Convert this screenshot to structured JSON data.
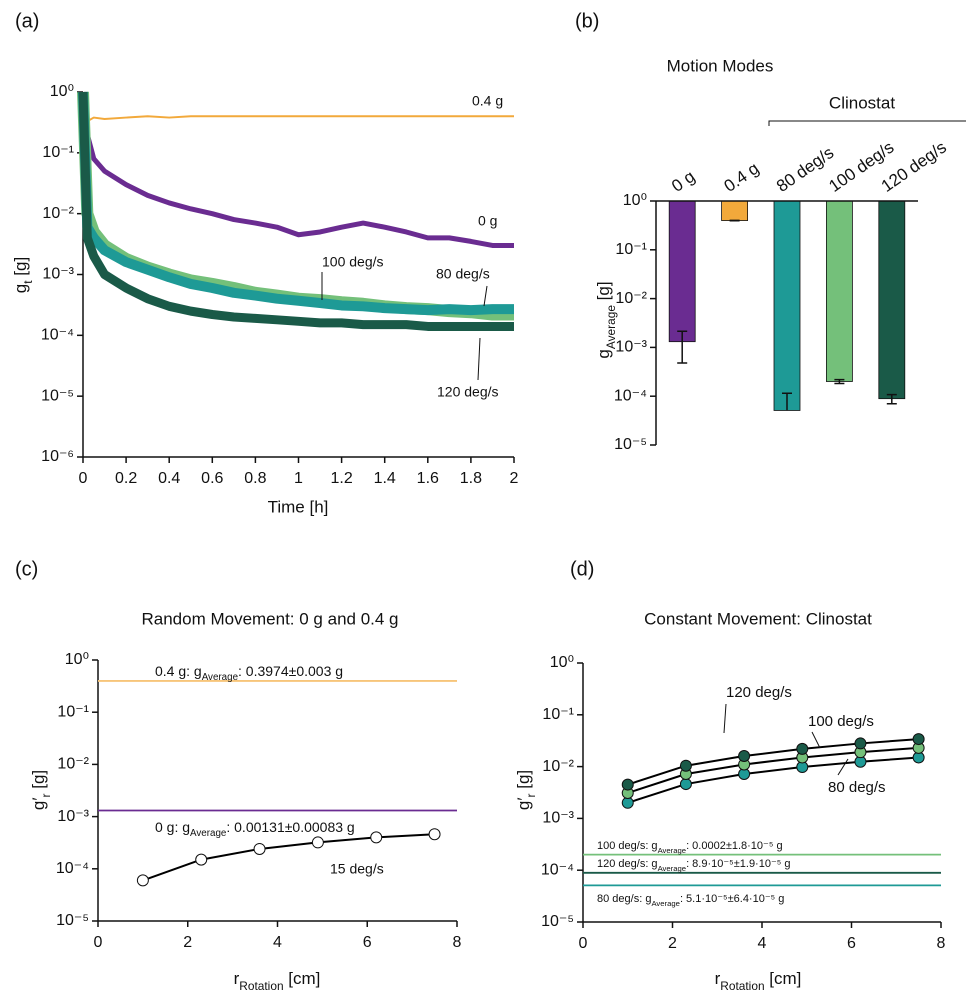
{
  "chart_data": [
    {
      "panel_label": "(a)",
      "type": "line",
      "ylog": true,
      "xlabel": "Time [h]",
      "ylabel": {
        "base": "g",
        "sub": "t",
        "tail": " [g]"
      },
      "xlim": [
        0,
        2
      ],
      "xticks": [
        0,
        0.2,
        0.4,
        0.6,
        0.8,
        1,
        1.2,
        1.4,
        1.6,
        1.8,
        2
      ],
      "ylim": [
        1e-06,
        1
      ],
      "yticks": [
        {
          "value": 1,
          "label": "10⁰"
        },
        {
          "value": 0.1,
          "label": "10⁻¹"
        },
        {
          "value": 0.01,
          "label": "10⁻²"
        },
        {
          "value": 0.001,
          "label": "10⁻³"
        },
        {
          "value": 0.0001,
          "label": "10⁻⁴"
        },
        {
          "value": 1e-05,
          "label": "10⁻⁵"
        },
        {
          "value": 1e-06,
          "label": "10⁻⁶"
        }
      ],
      "x": [
        0,
        0.02,
        0.05,
        0.1,
        0.2,
        0.3,
        0.4,
        0.5,
        0.6,
        0.7,
        0.8,
        0.9,
        1,
        1.1,
        1.2,
        1.3,
        1.4,
        1.5,
        1.6,
        1.7,
        1.8,
        1.9,
        2
      ],
      "series": [
        {
          "name": "0.4 g",
          "color": "#f2a93b",
          "values": [
            1,
            0.33,
            0.38,
            0.36,
            0.38,
            0.4,
            0.38,
            0.4,
            0.4,
            0.4,
            0.4,
            0.4,
            0.4,
            0.4,
            0.4,
            0.4,
            0.4,
            0.4,
            0.4,
            0.4,
            0.4,
            0.4,
            0.4
          ]
        },
        {
          "name": "0 g",
          "color": "#6a2c91",
          "values": [
            1,
            0.2,
            0.08,
            0.05,
            0.03,
            0.02,
            0.015,
            0.012,
            0.01,
            0.008,
            0.007,
            0.006,
            0.0045,
            0.005,
            0.006,
            0.007,
            0.006,
            0.005,
            0.004,
            0.004,
            0.0035,
            0.003,
            0.003
          ]
        },
        {
          "name": "100 deg/s",
          "color": "#74c07a",
          "values": [
            1,
            0.01,
            0.005,
            0.003,
            0.0018,
            0.0013,
            0.001,
            0.0008,
            0.0007,
            0.0006,
            0.0005,
            0.00045,
            0.0004,
            0.00038,
            0.00035,
            0.00033,
            0.0003,
            0.00028,
            0.00027,
            0.00025,
            0.00024,
            0.00022,
            0.00022
          ]
        },
        {
          "name": "80 deg/s",
          "color": "#1e9a96",
          "values": [
            1,
            0.006,
            0.004,
            0.0025,
            0.0016,
            0.0012,
            0.0009,
            0.0007,
            0.0006,
            0.0005,
            0.00045,
            0.0004,
            0.00037,
            0.00034,
            0.00031,
            0.0003,
            0.00028,
            0.00027,
            0.00026,
            0.00027,
            0.00026,
            0.00027,
            0.00027
          ]
        },
        {
          "name": "120 deg/s",
          "color": "#1a5a48",
          "values": [
            1,
            0.004,
            0.002,
            0.001,
            0.0006,
            0.0004,
            0.0003,
            0.00025,
            0.00022,
            0.0002,
            0.00019,
            0.00018,
            0.00017,
            0.00016,
            0.00016,
            0.00015,
            0.00015,
            0.00015,
            0.00014,
            0.00014,
            0.00014,
            0.00014,
            0.00014
          ]
        }
      ]
    },
    {
      "panel_label": "(b)",
      "type": "bar",
      "ylog": true,
      "title": "Motion Modes",
      "group_label": "Clinostat",
      "ylabel": {
        "base": "g",
        "sub": "Average",
        "tail": " [g]"
      },
      "ylim": [
        1e-05,
        1
      ],
      "yticks": [
        {
          "value": 1,
          "label": "10⁰"
        },
        {
          "value": 0.1,
          "label": "10⁻¹"
        },
        {
          "value": 0.01,
          "label": "10⁻²"
        },
        {
          "value": 0.001,
          "label": "10⁻³"
        },
        {
          "value": 0.0001,
          "label": "10⁻⁴"
        },
        {
          "value": 1e-05,
          "label": "10⁻⁵"
        }
      ],
      "categories": [
        "0 g",
        "0.4 g",
        "80 deg/s",
        "100 deg/s",
        "120 deg/s"
      ],
      "values": [
        0.00131,
        0.3974,
        5.1e-05,
        0.0002,
        8.9e-05
      ],
      "errors": [
        0.00083,
        0.003,
        6.4e-05,
        1.8e-05,
        1.9e-05
      ],
      "colors": [
        "#6a2c91",
        "#f2a93b",
        "#1e9a96",
        "#74c07a",
        "#1a5a48"
      ]
    },
    {
      "panel_label": "(c)",
      "type": "line",
      "ylog": true,
      "markers": true,
      "title": "Random Movement: 0 g and 0.4 g",
      "xlabel": {
        "base": "r",
        "sub": "Rotation",
        "tail": " [cm]"
      },
      "ylabel": {
        "base": "g′",
        "sub": "r",
        "tail": " [g]"
      },
      "xlim": [
        0,
        8
      ],
      "xticks": [
        0,
        2,
        4,
        6,
        8
      ],
      "ylim": [
        1e-05,
        1
      ],
      "yticks": [
        {
          "value": 1,
          "label": "10⁰"
        },
        {
          "value": 0.1,
          "label": "10⁻¹"
        },
        {
          "value": 0.01,
          "label": "10⁻²"
        },
        {
          "value": 0.001,
          "label": "10⁻³"
        },
        {
          "value": 0.0001,
          "label": "10⁻⁴"
        },
        {
          "value": 1e-05,
          "label": "10⁻⁵"
        }
      ],
      "x": [
        1,
        2.3,
        3.6,
        4.9,
        6.2,
        7.5
      ],
      "series": [
        {
          "name": "15 deg/s",
          "color": "#000000",
          "marker_fill": "#ffffff",
          "values": [
            6e-05,
            0.00015,
            0.00024,
            0.00032,
            0.0004,
            0.00046
          ]
        }
      ],
      "hlines": [
        {
          "value": 0.3974,
          "color": "#f7c57a",
          "label": {
            "pre": "0.4 g: g",
            "sub": "Average",
            "post": ": 0.3974±0.003 g"
          }
        },
        {
          "value": 0.00131,
          "color": "#6a2c91",
          "label": {
            "pre": "0 g: g",
            "sub": "Average",
            "post": ": 0.00131±0.00083 g"
          }
        }
      ]
    },
    {
      "panel_label": "(d)",
      "type": "line",
      "ylog": true,
      "markers": true,
      "title": "Constant Movement: Clinostat",
      "xlabel": {
        "base": "r",
        "sub": "Rotation",
        "tail": " [cm]"
      },
      "ylabel": {
        "base": "g′",
        "sub": "r",
        "tail": " [g]"
      },
      "xlim": [
        0,
        8
      ],
      "xticks": [
        0,
        2,
        4,
        6,
        8
      ],
      "ylim": [
        1e-05,
        1
      ],
      "yticks": [
        {
          "value": 1,
          "label": "10⁰"
        },
        {
          "value": 0.1,
          "label": "10⁻¹"
        },
        {
          "value": 0.01,
          "label": "10⁻²"
        },
        {
          "value": 0.001,
          "label": "10⁻³"
        },
        {
          "value": 0.0001,
          "label": "10⁻⁴"
        },
        {
          "value": 1e-05,
          "label": "10⁻⁵"
        }
      ],
      "x": [
        1,
        2.3,
        3.6,
        4.9,
        6.2,
        7.5
      ],
      "series": [
        {
          "name": "80 deg/s",
          "color": "#1e9a96",
          "line_color": "#000000",
          "values": [
            0.002,
            0.0046,
            0.0072,
            0.0098,
            0.0124,
            0.015
          ]
        },
        {
          "name": "100 deg/s",
          "color": "#74c07a",
          "line_color": "#000000",
          "values": [
            0.0031,
            0.0072,
            0.011,
            0.015,
            0.019,
            0.023
          ]
        },
        {
          "name": "120 deg/s",
          "color": "#1a5a48",
          "line_color": "#000000",
          "values": [
            0.0045,
            0.0104,
            0.016,
            0.022,
            0.028,
            0.034
          ]
        }
      ],
      "hlines": [
        {
          "value": 0.0002,
          "color": "#74c07a",
          "label": {
            "pre": "100 deg/s: g",
            "sub": "Average",
            "post": ": 0.0002±1.8·10⁻⁵ g"
          }
        },
        {
          "value": 8.9e-05,
          "color": "#1a5a48",
          "label": {
            "pre": "120 deg/s: g",
            "sub": "Average",
            "post": ": 8.9·10⁻⁵±1.9·10⁻⁵ g"
          }
        },
        {
          "value": 5.1e-05,
          "color": "#1e9a96",
          "label": {
            "pre": "80 deg/s: g",
            "sub": "Average",
            "post": ": 5.1·10⁻⁵±6.4·10⁻⁵ g"
          }
        }
      ]
    }
  ]
}
